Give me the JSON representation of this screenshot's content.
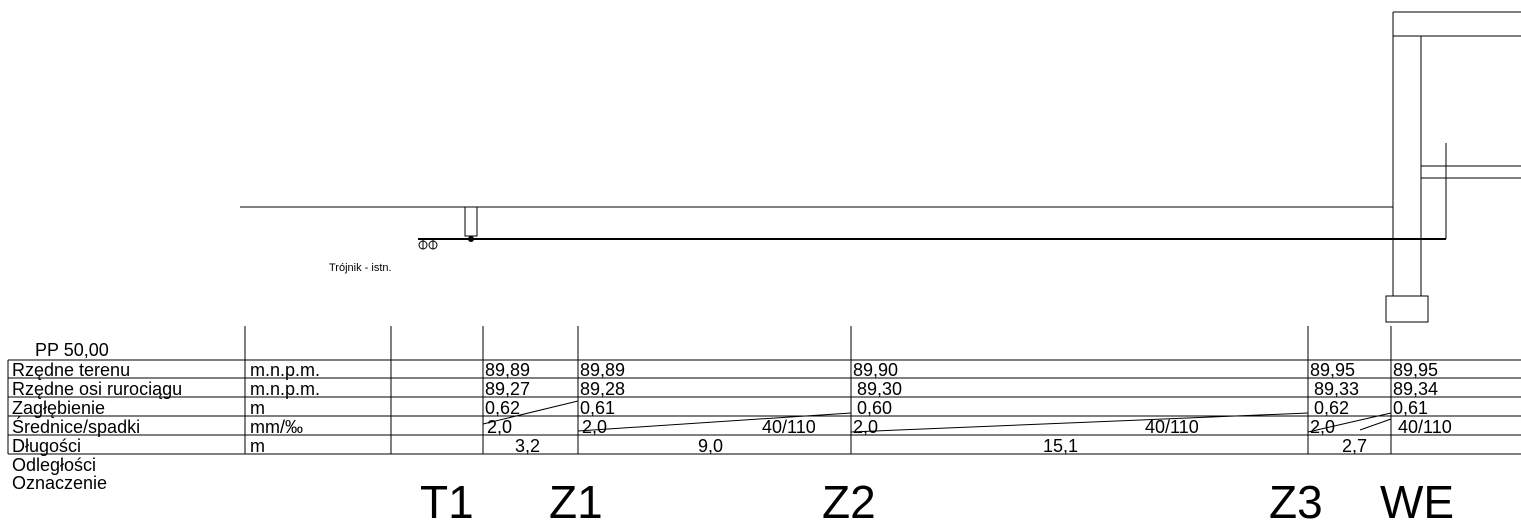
{
  "profile": {
    "datum_label": "PP 50,00",
    "tee_note": "Trójnik - istn.",
    "rows": [
      {
        "label": "Rzędne terenu",
        "unit": "m.n.p.m."
      },
      {
        "label": "Rzędne osi rurociągu",
        "unit": "m.n.p.m."
      },
      {
        "label": "Zagłębienie",
        "unit": "m"
      },
      {
        "label": "Średnice/spadki",
        "unit": "mm/‰"
      },
      {
        "label": "Długości",
        "unit": "m"
      },
      {
        "label": "Odległości",
        "unit": ""
      },
      {
        "label": "Oznaczenie",
        "unit": ""
      }
    ],
    "nodes": [
      {
        "name": "T1",
        "terrain": "89,89",
        "pipe": "89,27",
        "depth": "0,62",
        "slope": "2,0"
      },
      {
        "name": "Z1",
        "terrain": "89,89",
        "pipe": "89,28",
        "depth": "0,61",
        "slope": "2,0"
      },
      {
        "name": "Z2",
        "terrain": "89,90",
        "pipe": "89,30",
        "depth": "0,60",
        "slope": "2,0"
      },
      {
        "name": "Z3",
        "terrain": "89,95",
        "pipe": "89,33",
        "depth": "0,62",
        "slope": "2,0"
      },
      {
        "name": "WE",
        "terrain": "89,95",
        "pipe": "89,34",
        "depth": "0,61",
        "slope": ""
      }
    ],
    "segments": [
      {
        "diameter": "",
        "length": "3,2"
      },
      {
        "diameter": "40/110",
        "length": "9,0"
      },
      {
        "diameter": "40/110",
        "length": "15,1"
      },
      {
        "diameter": "",
        "length": "2,7"
      },
      {
        "diameter": "40/110",
        "length": ""
      }
    ]
  }
}
